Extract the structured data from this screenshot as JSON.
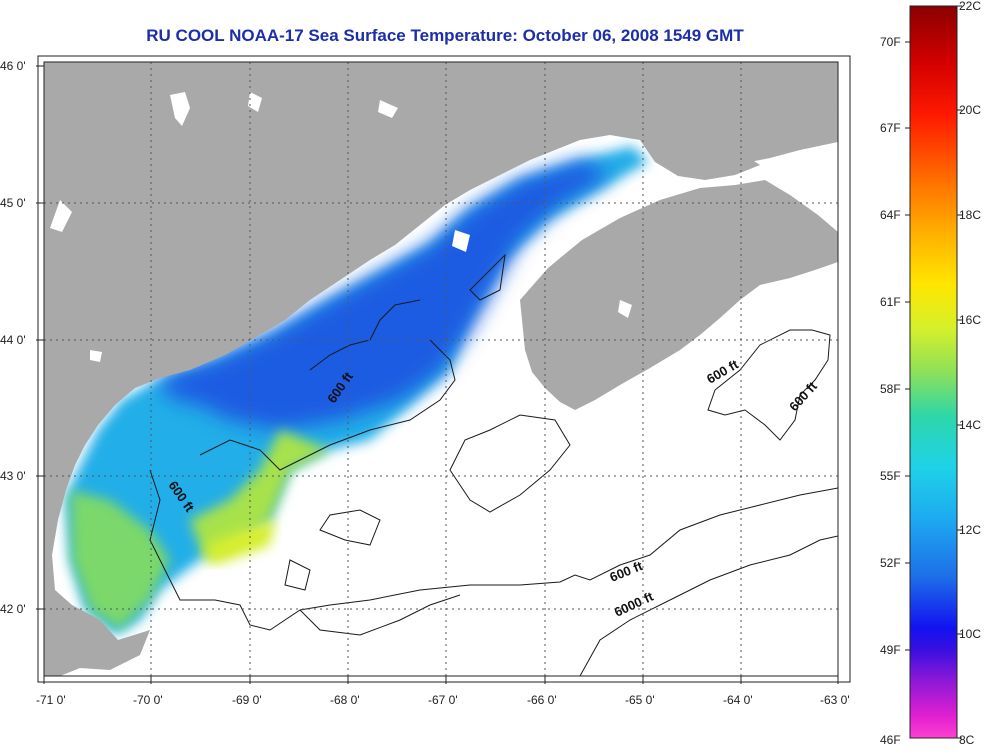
{
  "title": "RU COOL  NOAA-17  Sea Surface Temperature:  October 06, 2008 1549 GMT",
  "axes": {
    "lon_labels": [
      "-71 0'",
      "-70 0'",
      "-69 0'",
      "-68 0'",
      "-67 0'",
      "-66 0'",
      "-65 0'",
      "-64 0'",
      "-63 0'"
    ],
    "lat_labels": [
      "46 0'",
      "45 0'",
      "44 0'",
      "43 0'",
      "42 0'"
    ]
  },
  "contour_labels": [
    "600 ft",
    "600 ft",
    "600 ft",
    "600 ft",
    "600 ft",
    "6000 ft"
  ],
  "colorbar": {
    "fahrenheit_labels": [
      "70F",
      "67F",
      "64F",
      "61F",
      "58F",
      "55F",
      "52F",
      "49F",
      "46F"
    ],
    "celsius_labels": [
      "22C",
      "20C",
      "18C",
      "16C",
      "14C",
      "12C",
      "10C",
      "8C"
    ],
    "range_c": [
      8,
      22
    ]
  },
  "colors": {
    "land": "#a9a9a9",
    "ocean_no_data": "#ffffff",
    "sst_cold": "#1e56e0",
    "sst_cool": "#22aee8",
    "sst_mild": "#8edc5a",
    "contour": "#1a1a1a"
  }
}
